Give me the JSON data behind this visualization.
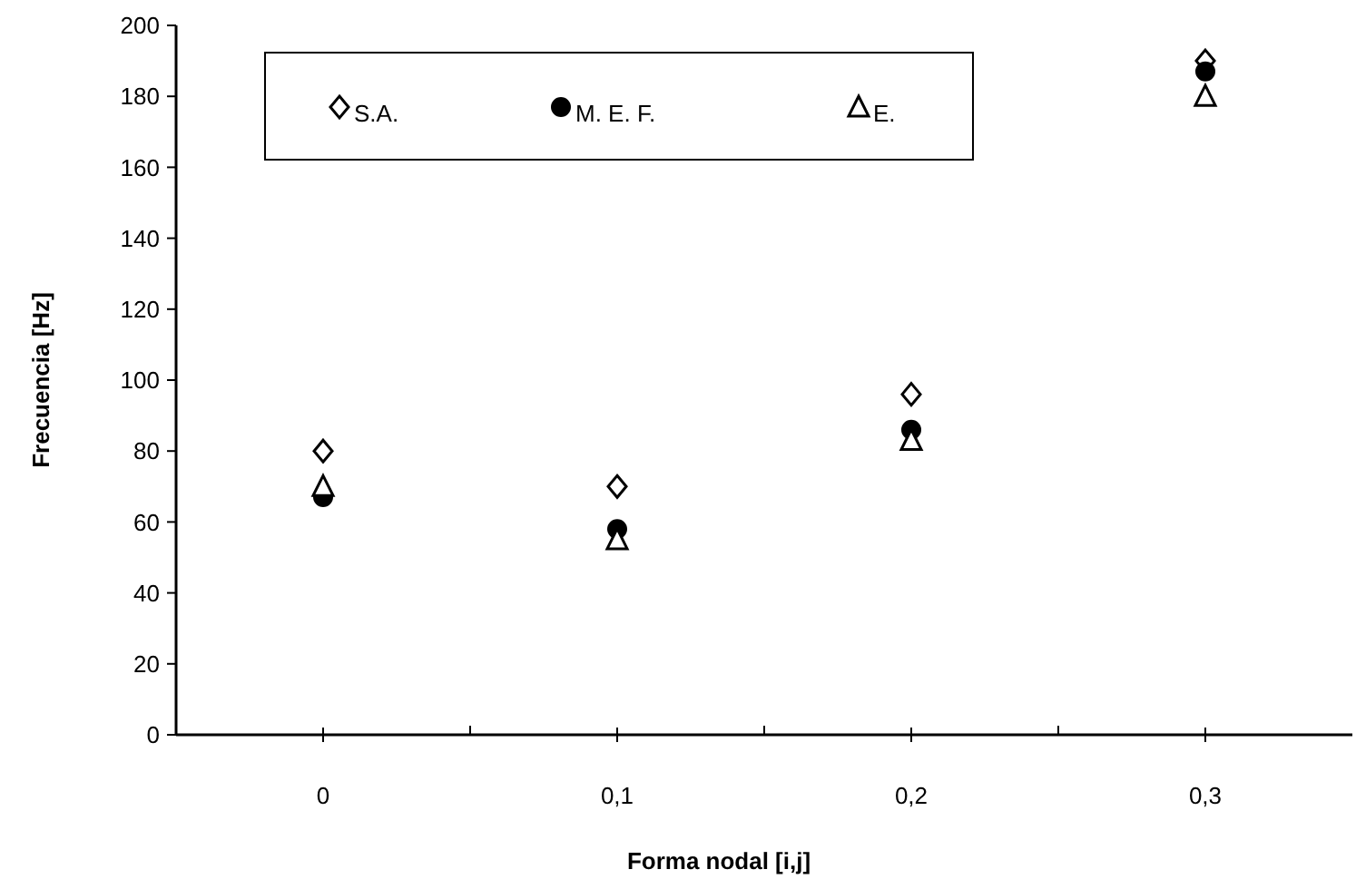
{
  "chart_data": {
    "type": "scatter",
    "xlabel": "Forma nodal [i,j]",
    "ylabel": "Frecuencia [Hz]",
    "x": [
      0,
      0.1,
      0.2,
      0.3
    ],
    "xlim": [
      -0.05,
      0.35
    ],
    "xticks": [
      {
        "value": 0,
        "label": "0"
      },
      {
        "value": 0.05,
        "label": null
      },
      {
        "value": 0.1,
        "label": "0,1"
      },
      {
        "value": 0.15,
        "label": null
      },
      {
        "value": 0.2,
        "label": "0,2"
      },
      {
        "value": 0.25,
        "label": null
      },
      {
        "value": 0.3,
        "label": "0,3"
      }
    ],
    "ylim": [
      0,
      200
    ],
    "yticks": [
      0,
      20,
      40,
      60,
      80,
      100,
      120,
      140,
      160,
      180,
      200
    ],
    "grid": false,
    "legend": "top",
    "series": [
      {
        "name": "S.A.",
        "color": "#000000",
        "marker": "diamond",
        "values": [
          80,
          70,
          96,
          190
        ]
      },
      {
        "name": "M. E. F.",
        "color": "#000000",
        "marker": "circle",
        "values": [
          67,
          58,
          86,
          187
        ]
      },
      {
        "name": "E.",
        "color": "#000000",
        "marker": "triangle",
        "values": [
          70,
          55,
          83,
          180
        ]
      }
    ]
  }
}
